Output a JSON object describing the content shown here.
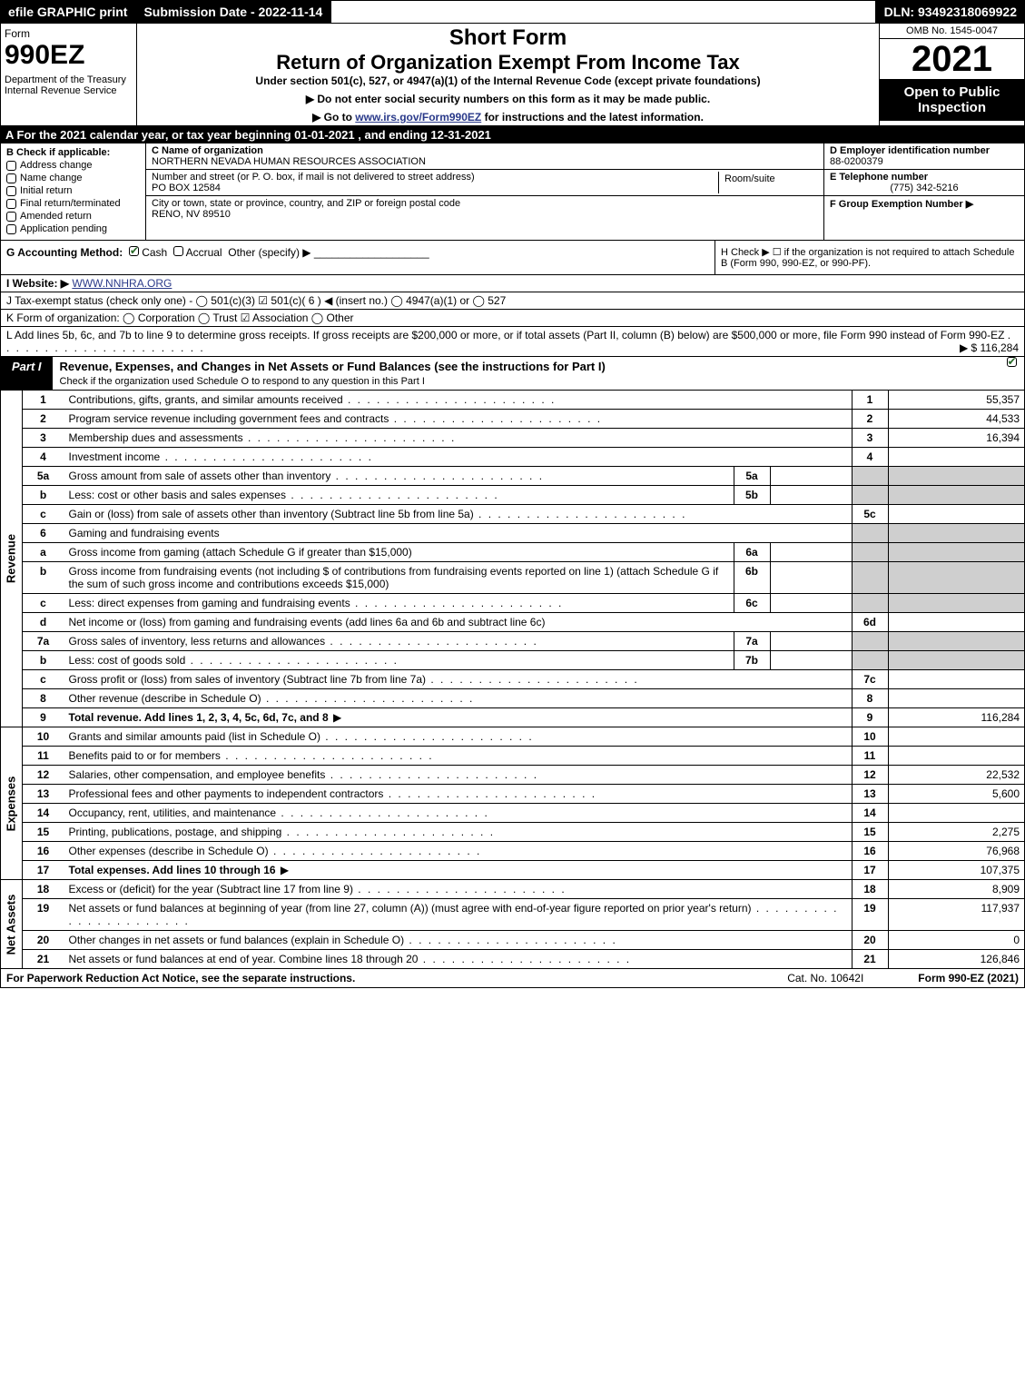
{
  "topbar": {
    "efile": "efile GRAPHIC print",
    "submission": "Submission Date - 2022-11-14",
    "dln": "DLN: 93492318069922"
  },
  "header": {
    "form_word": "Form",
    "form_number": "990EZ",
    "department": "Department of the Treasury\nInternal Revenue Service",
    "short_form": "Short Form",
    "return_title": "Return of Organization Exempt From Income Tax",
    "under_section": "Under section 501(c), 527, or 4947(a)(1) of the Internal Revenue Code (except private foundations)",
    "notice1": "▶ Do not enter social security numbers on this form as it may be made public.",
    "notice2_pre": "▶ Go to ",
    "notice2_link": "www.irs.gov/Form990EZ",
    "notice2_post": " for instructions and the latest information.",
    "omb": "OMB No. 1545-0047",
    "year": "2021",
    "open": "Open to Public Inspection"
  },
  "row_a": "A  For the 2021 calendar year, or tax year beginning 01-01-2021 , and ending 12-31-2021",
  "section_b": {
    "label": "B  Check if applicable:",
    "items": [
      "Address change",
      "Name change",
      "Initial return",
      "Final return/terminated",
      "Amended return",
      "Application pending"
    ]
  },
  "section_c": {
    "name_lbl": "C Name of organization",
    "name": "NORTHERN NEVADA HUMAN RESOURCES ASSOCIATION",
    "street_lbl": "Number and street (or P. O. box, if mail is not delivered to street address)",
    "street": "PO BOX 12584",
    "room_lbl": "Room/suite",
    "city_lbl": "City or town, state or province, country, and ZIP or foreign postal code",
    "city": "RENO, NV  89510"
  },
  "section_d": {
    "lbl": "D Employer identification number",
    "ein": "88-0200379"
  },
  "section_e": {
    "lbl": "E Telephone number",
    "phone": "(775) 342-5216"
  },
  "section_f": {
    "lbl": "F Group Exemption Number  ▶"
  },
  "row_g": {
    "prefix": "G Accounting Method:",
    "cash": "Cash",
    "accrual": "Accrual",
    "other": "Other (specify) ▶"
  },
  "row_h": "H  Check ▶ ☐ if the organization is not required to attach Schedule B (Form 990, 990-EZ, or 990-PF).",
  "row_i": {
    "prefix": "I Website: ▶",
    "url": "WWW.NNHRA.ORG"
  },
  "row_j": "J Tax-exempt status (check only one) - ◯ 501(c)(3)  ☑ 501(c)( 6 ) ◀ (insert no.)  ◯ 4947(a)(1) or  ◯ 527",
  "row_k": "K Form of organization:  ◯ Corporation  ◯ Trust  ☑ Association  ◯ Other",
  "row_l": {
    "text": "L Add lines 5b, 6c, and 7b to line 9 to determine gross receipts. If gross receipts are $200,000 or more, or if total assets (Part II, column (B) below) are $500,000 or more, file Form 990 instead of Form 990-EZ",
    "amount": "▶ $ 116,284"
  },
  "part1": {
    "tab": "Part I",
    "title": "Revenue, Expenses, and Changes in Net Assets or Fund Balances (see the instructions for Part I)",
    "subtitle": "Check if the organization used Schedule O to respond to any question in this Part I"
  },
  "revenue": {
    "vlabel": "Revenue",
    "lines": {
      "1": {
        "n": "1",
        "d": "Contributions, gifts, grants, and similar amounts received",
        "m": "1",
        "a": "55,357"
      },
      "2": {
        "n": "2",
        "d": "Program service revenue including government fees and contracts",
        "m": "2",
        "a": "44,533"
      },
      "3": {
        "n": "3",
        "d": "Membership dues and assessments",
        "m": "3",
        "a": "16,394"
      },
      "4": {
        "n": "4",
        "d": "Investment income",
        "m": "4",
        "a": ""
      },
      "5a": {
        "n": "5a",
        "d": "Gross amount from sale of assets other than inventory",
        "sb": "5a"
      },
      "5b": {
        "n": "b",
        "d": "Less: cost or other basis and sales expenses",
        "sb": "5b"
      },
      "5c": {
        "n": "c",
        "d": "Gain or (loss) from sale of assets other than inventory (Subtract line 5b from line 5a)",
        "m": "5c",
        "a": ""
      },
      "6": {
        "n": "6",
        "d": "Gaming and fundraising events"
      },
      "6a": {
        "n": "a",
        "d": "Gross income from gaming (attach Schedule G if greater than $15,000)",
        "sb": "6a"
      },
      "6b": {
        "n": "b",
        "d": "Gross income from fundraising events (not including $                 of contributions from fundraising events reported on line 1) (attach Schedule G if the sum of such gross income and contributions exceeds $15,000)",
        "sb": "6b"
      },
      "6c": {
        "n": "c",
        "d": "Less: direct expenses from gaming and fundraising events",
        "sb": "6c"
      },
      "6d": {
        "n": "d",
        "d": "Net income or (loss) from gaming and fundraising events (add lines 6a and 6b and subtract line 6c)",
        "m": "6d",
        "a": ""
      },
      "7a": {
        "n": "7a",
        "d": "Gross sales of inventory, less returns and allowances",
        "sb": "7a"
      },
      "7b": {
        "n": "b",
        "d": "Less: cost of goods sold",
        "sb": "7b"
      },
      "7c": {
        "n": "c",
        "d": "Gross profit or (loss) from sales of inventory (Subtract line 7b from line 7a)",
        "m": "7c",
        "a": ""
      },
      "8": {
        "n": "8",
        "d": "Other revenue (describe in Schedule O)",
        "m": "8",
        "a": ""
      },
      "9": {
        "n": "9",
        "d": "Total revenue. Add lines 1, 2, 3, 4, 5c, 6d, 7c, and 8",
        "m": "9",
        "a": "116,284",
        "bold": true,
        "arrow": true
      }
    }
  },
  "expenses": {
    "vlabel": "Expenses",
    "lines": {
      "10": {
        "n": "10",
        "d": "Grants and similar amounts paid (list in Schedule O)",
        "m": "10",
        "a": ""
      },
      "11": {
        "n": "11",
        "d": "Benefits paid to or for members",
        "m": "11",
        "a": ""
      },
      "12": {
        "n": "12",
        "d": "Salaries, other compensation, and employee benefits",
        "m": "12",
        "a": "22,532"
      },
      "13": {
        "n": "13",
        "d": "Professional fees and other payments to independent contractors",
        "m": "13",
        "a": "5,600"
      },
      "14": {
        "n": "14",
        "d": "Occupancy, rent, utilities, and maintenance",
        "m": "14",
        "a": ""
      },
      "15": {
        "n": "15",
        "d": "Printing, publications, postage, and shipping",
        "m": "15",
        "a": "2,275"
      },
      "16": {
        "n": "16",
        "d": "Other expenses (describe in Schedule O)",
        "m": "16",
        "a": "76,968"
      },
      "17": {
        "n": "17",
        "d": "Total expenses. Add lines 10 through 16",
        "m": "17",
        "a": "107,375",
        "bold": true,
        "arrow": true
      }
    }
  },
  "netassets": {
    "vlabel": "Net Assets",
    "lines": {
      "18": {
        "n": "18",
        "d": "Excess or (deficit) for the year (Subtract line 17 from line 9)",
        "m": "18",
        "a": "8,909"
      },
      "19": {
        "n": "19",
        "d": "Net assets or fund balances at beginning of year (from line 27, column (A)) (must agree with end-of-year figure reported on prior year's return)",
        "m": "19",
        "a": "117,937"
      },
      "20": {
        "n": "20",
        "d": "Other changes in net assets or fund balances (explain in Schedule O)",
        "m": "20",
        "a": "0"
      },
      "21": {
        "n": "21",
        "d": "Net assets or fund balances at end of year. Combine lines 18 through 20",
        "m": "21",
        "a": "126,846"
      }
    }
  },
  "footer": {
    "left": "For Paperwork Reduction Act Notice, see the separate instructions.",
    "mid": "Cat. No. 10642I",
    "right": "Form 990-EZ (2021)"
  }
}
